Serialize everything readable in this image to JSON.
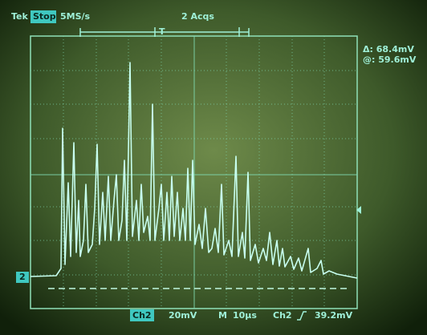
{
  "header": {
    "brand": "Tek",
    "state": "Stop",
    "sample_rate": "5MS/s",
    "acquisitions": "2 Acqs",
    "trigger_marker": "T"
  },
  "cursor": {
    "delta": "Δ: 68.4mV",
    "at": "@: 59.6mV"
  },
  "channel_marker": "2",
  "footer": {
    "channel": "Ch2",
    "scale": "20mV",
    "timebase_label": "M",
    "timebase": "10µs",
    "trigger_source": "Ch2",
    "trigger_level": "39.2mV"
  }
}
